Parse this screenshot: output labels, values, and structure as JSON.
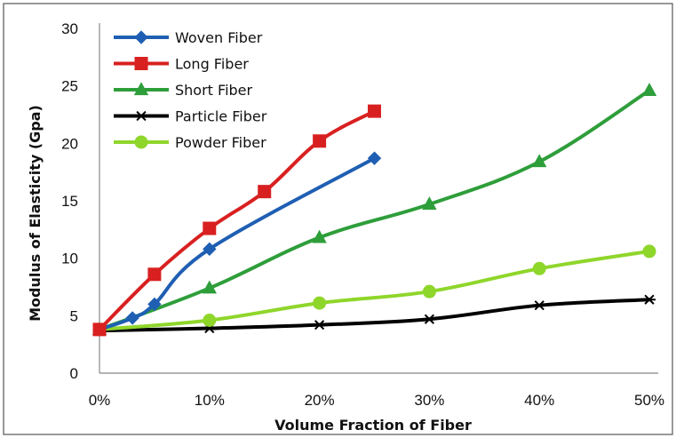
{
  "chart_data": {
    "type": "line",
    "xlabel": "Volume Fraction of Fiber",
    "ylabel": "Modulus of Elasticity (Gpa)",
    "xlim": [
      0,
      50
    ],
    "ylim": [
      0,
      30
    ],
    "x_ticks": [
      "0%",
      "10%",
      "20%",
      "30%",
      "40%",
      "50%"
    ],
    "x_tick_values": [
      0,
      10,
      20,
      30,
      40,
      50
    ],
    "y_ticks": [
      "0",
      "5",
      "10",
      "15",
      "20",
      "25",
      "30"
    ],
    "y_tick_values": [
      0,
      5,
      10,
      15,
      20,
      25,
      30
    ],
    "grid": false,
    "legend_position": "top-left",
    "series": [
      {
        "name": "Woven Fiber",
        "color": "#1f5fb3",
        "marker": "diamond",
        "points": [
          [
            0,
            3.8
          ],
          [
            3,
            4.8
          ],
          [
            5,
            6.0
          ],
          [
            10,
            10.8
          ],
          [
            25,
            18.7
          ]
        ]
      },
      {
        "name": "Long Fiber",
        "color": "#d92020",
        "marker": "square",
        "points": [
          [
            0,
            3.8
          ],
          [
            5,
            8.6
          ],
          [
            10,
            12.6
          ],
          [
            15,
            15.8
          ],
          [
            20,
            20.2
          ],
          [
            25,
            22.8
          ]
        ]
      },
      {
        "name": "Short Fiber",
        "color": "#2e9e3a",
        "marker": "triangle",
        "points": [
          [
            0,
            3.8
          ],
          [
            10,
            7.4
          ],
          [
            20,
            11.8
          ],
          [
            30,
            14.7
          ],
          [
            40,
            18.4
          ],
          [
            50,
            24.6
          ]
        ]
      },
      {
        "name": "Particle Fiber",
        "color": "#000000",
        "marker": "asterisk",
        "points": [
          [
            0,
            3.7
          ],
          [
            10,
            3.9
          ],
          [
            20,
            4.2
          ],
          [
            30,
            4.7
          ],
          [
            40,
            5.9
          ],
          [
            50,
            6.4
          ]
        ]
      },
      {
        "name": "Powder Fiber",
        "color": "#8fd62b",
        "marker": "circle",
        "points": [
          [
            0,
            3.8
          ],
          [
            10,
            4.6
          ],
          [
            20,
            6.1
          ],
          [
            30,
            7.1
          ],
          [
            40,
            9.1
          ],
          [
            50,
            10.6
          ]
        ]
      }
    ]
  }
}
